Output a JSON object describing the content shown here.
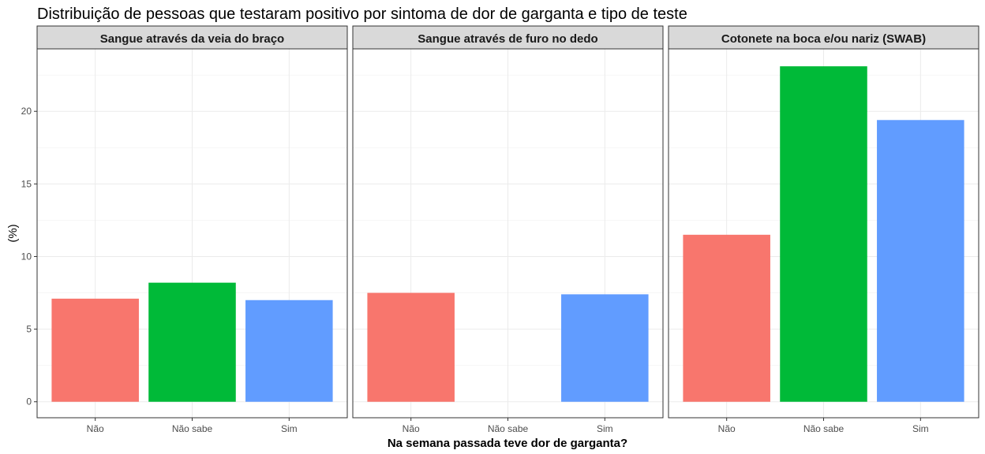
{
  "chart_data": {
    "type": "bar",
    "title": "Distribuição de pessoas que testaram positivo por sintoma de dor de garganta e tipo de teste",
    "xlabel": "Na semana passada teve dor de garganta?",
    "ylabel": "(%)",
    "categories": [
      "Não",
      "Não sabe",
      "Sim"
    ],
    "colors": [
      "#F8766D",
      "#00BA38",
      "#619CFF"
    ],
    "ylim": [
      -1.1,
      24.3
    ],
    "yticks": [
      0,
      5,
      10,
      15,
      20
    ],
    "grid": true,
    "legend": "none",
    "facets": [
      {
        "label": "Sangue através da veia do braço",
        "values": [
          7.1,
          8.2,
          7.0
        ]
      },
      {
        "label": "Sangue através de furo no dedo",
        "values": [
          7.5,
          null,
          7.4
        ]
      },
      {
        "label": "Cotonete na boca e/ou nariz (SWAB)",
        "values": [
          11.5,
          23.1,
          19.4
        ]
      }
    ]
  }
}
